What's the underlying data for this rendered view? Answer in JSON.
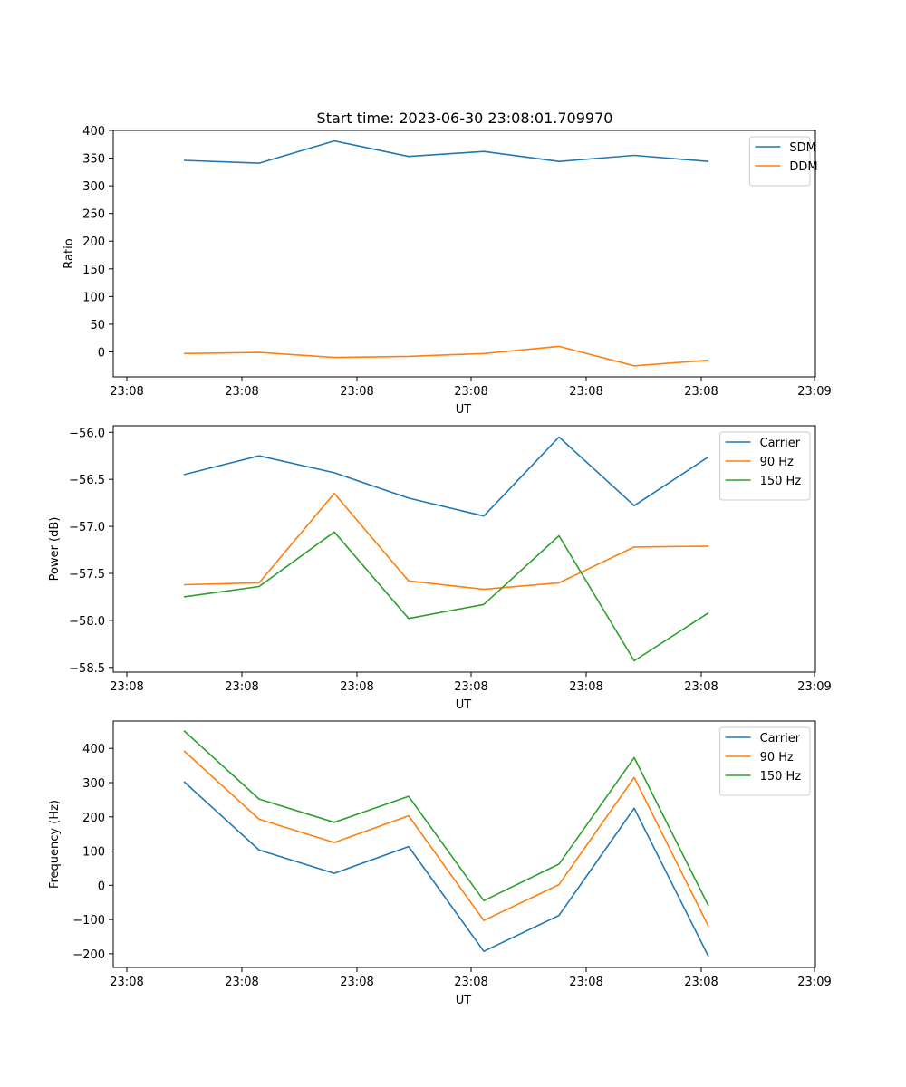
{
  "figure_title": "Start time: 2023-06-30 23:08:01.709970",
  "colors": {
    "blue": "#1f77b4",
    "orange": "#ff7f0e",
    "green": "#2ca02c"
  },
  "chart_data": [
    {
      "type": "line",
      "title": "Start time: 2023-06-30 23:08:01.709970",
      "xlabel": "UT",
      "ylabel": "Ratio",
      "x_tick_labels": [
        "23:08",
        "23:08",
        "23:08",
        "23:08",
        "23:08",
        "23:08",
        "23:09"
      ],
      "y_ticks": [
        0,
        50,
        100,
        150,
        200,
        250,
        300,
        350,
        400
      ],
      "ylim": [
        -45,
        400
      ],
      "legend": "top-right",
      "grid": false,
      "series": [
        {
          "name": "SDM",
          "color": "#1f77b4",
          "values": [
            346,
            341,
            381,
            353,
            362,
            344,
            355,
            344
          ]
        },
        {
          "name": "DDM",
          "color": "#ff7f0e",
          "values": [
            -3,
            -1,
            -10,
            -8,
            -3,
            10,
            -25,
            -15
          ]
        }
      ]
    },
    {
      "type": "line",
      "title": "",
      "xlabel": "UT",
      "ylabel": "Power (dB)",
      "x_tick_labels": [
        "23:08",
        "23:08",
        "23:08",
        "23:08",
        "23:08",
        "23:08",
        "23:09"
      ],
      "y_ticks": [
        -58.5,
        -58.0,
        -57.5,
        -57.0,
        -56.5,
        -56.0
      ],
      "y_tick_labels": [
        "−58.5",
        "−58.0",
        "−57.5",
        "−57.0",
        "−56.5",
        "−56.0"
      ],
      "ylim": [
        -58.55,
        -55.93
      ],
      "legend": "top-right",
      "grid": false,
      "series": [
        {
          "name": "Carrier",
          "color": "#1f77b4",
          "values": [
            -56.45,
            -56.25,
            -56.43,
            -56.7,
            -56.89,
            -56.05,
            -56.78,
            -56.26
          ]
        },
        {
          "name": "90 Hz",
          "color": "#ff7f0e",
          "values": [
            -57.62,
            -57.6,
            -56.65,
            -57.58,
            -57.67,
            -57.6,
            -57.22,
            -57.21
          ]
        },
        {
          "name": "150 Hz",
          "color": "#2ca02c",
          "values": [
            -57.75,
            -57.64,
            -57.06,
            -57.98,
            -57.83,
            -57.1,
            -58.43,
            -57.92
          ]
        }
      ]
    },
    {
      "type": "line",
      "title": "",
      "xlabel": "UT",
      "ylabel": "Frequency (Hz)",
      "x_tick_labels": [
        "23:08",
        "23:08",
        "23:08",
        "23:08",
        "23:08",
        "23:08",
        "23:09"
      ],
      "y_ticks": [
        -200,
        -100,
        0,
        100,
        200,
        300,
        400
      ],
      "y_tick_labels": [
        "−200",
        "−100",
        "0",
        "100",
        "200",
        "300",
        "400"
      ],
      "ylim": [
        -240,
        480
      ],
      "legend": "top-right",
      "grid": false,
      "series": [
        {
          "name": "Carrier",
          "color": "#1f77b4",
          "values": [
            303,
            103,
            35,
            113,
            -193,
            -88,
            225,
            -208
          ]
        },
        {
          "name": "90 Hz",
          "color": "#ff7f0e",
          "values": [
            393,
            193,
            125,
            203,
            -103,
            2,
            315,
            -120
          ]
        },
        {
          "name": "150 Hz",
          "color": "#2ca02c",
          "values": [
            452,
            252,
            184,
            260,
            -45,
            62,
            373,
            -60
          ]
        }
      ]
    }
  ]
}
